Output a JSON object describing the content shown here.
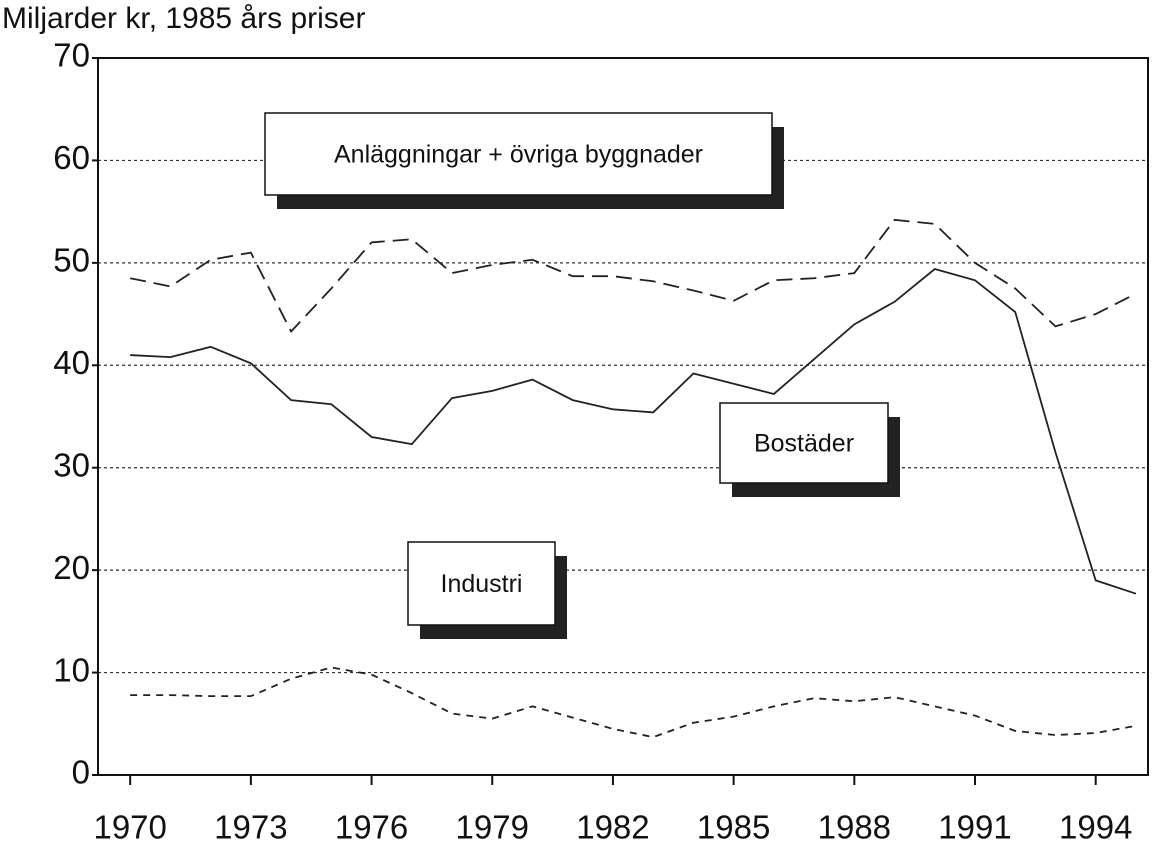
{
  "chart_data": {
    "type": "line",
    "title": "Miljarder kr, 1985 års priser",
    "x": [
      1970,
      1971,
      1972,
      1973,
      1974,
      1975,
      1976,
      1977,
      1978,
      1979,
      1980,
      1981,
      1982,
      1983,
      1984,
      1985,
      1986,
      1987,
      1988,
      1989,
      1990,
      1991,
      1992,
      1993,
      1994,
      1995
    ],
    "series": [
      {
        "name": "Anläggningar + övriga byggnader",
        "color": "#222222",
        "dash": "16 8",
        "values": [
          48.5,
          47.7,
          50.3,
          51,
          43.3,
          47.5,
          52,
          52.3,
          49,
          49.8,
          50.3,
          48.7,
          48.7,
          48.2,
          47.3,
          46.3,
          48.3,
          48.5,
          49,
          54.2,
          53.8,
          50,
          47.5,
          43.8,
          45,
          47
        ]
      },
      {
        "name": "Bostäder",
        "color": "#222222",
        "dash": "none",
        "values": [
          41,
          40.8,
          41.8,
          40.2,
          36.6,
          36.2,
          33,
          32.3,
          36.8,
          37.5,
          38.6,
          36.6,
          35.7,
          35.4,
          39.2,
          38.2,
          37.2,
          40.6,
          44,
          46.2,
          49.4,
          48.3,
          45.2,
          31.5,
          19,
          17.7
        ]
      },
      {
        "name": "Industri",
        "color": "#222222",
        "dash": "7 6",
        "values": [
          7.8,
          7.8,
          7.7,
          7.7,
          9.4,
          10.5,
          9.8,
          8,
          6,
          5.5,
          6.7,
          5.6,
          4.5,
          3.7,
          5.1,
          5.7,
          6.7,
          7.5,
          7.2,
          7.6,
          6.7,
          5.8,
          4.3,
          3.9,
          4.1,
          4.8
        ]
      }
    ],
    "xlim": [
      1969.2,
      1995.3
    ],
    "xticks": [
      1970,
      1973,
      1976,
      1979,
      1982,
      1985,
      1988,
      1991,
      1994
    ],
    "ylim": [
      0,
      70
    ],
    "yticks": [
      0,
      10,
      20,
      30,
      40,
      50,
      60,
      70
    ],
    "grid": true
  }
}
